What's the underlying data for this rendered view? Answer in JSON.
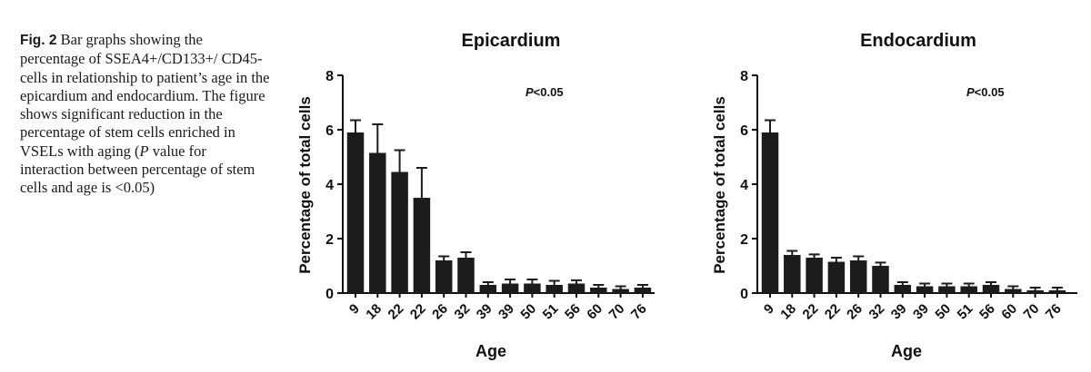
{
  "caption": {
    "fig_label": "Fig. 2",
    "text_part1": " Bar graphs showing the percentage of SSEA4+/CD133+/ CD45- cells in relationship to patient’s age in the epicardium and endocardium. The figure shows significant reduction in the percentage of stem cells enriched in VSELs with aging (",
    "text_italic": "P",
    "text_part2": " value for interaction between percentage of stem cells and age is <0.05)"
  },
  "chart_data": [
    {
      "type": "bar",
      "title": "Epicardium",
      "annotation": {
        "italic": "P",
        "rest": "<0.05"
      },
      "xlabel": "Age",
      "ylabel": "Percentage of total cells",
      "ylim": [
        0,
        8
      ],
      "yticks": [
        "0",
        "2",
        "4",
        "6",
        "8"
      ],
      "categories": [
        "9",
        "18",
        "22",
        "22",
        "26",
        "32",
        "39",
        "39",
        "50",
        "51",
        "56",
        "60",
        "70",
        "76"
      ],
      "values": [
        5.9,
        5.15,
        4.45,
        3.5,
        1.2,
        1.3,
        0.3,
        0.35,
        0.35,
        0.3,
        0.35,
        0.2,
        0.15,
        0.2
      ],
      "errors": [
        0.45,
        1.05,
        0.8,
        1.1,
        0.15,
        0.2,
        0.1,
        0.15,
        0.15,
        0.15,
        0.12,
        0.1,
        0.1,
        0.1
      ],
      "bar_color": "#1c1c1c"
    },
    {
      "type": "bar",
      "title": "Endocardium",
      "annotation": {
        "italic": "P",
        "rest": "<0.05"
      },
      "xlabel": "Age",
      "ylabel": "Percentage of total cells",
      "ylim": [
        0,
        8
      ],
      "yticks": [
        "0",
        "2",
        "4",
        "6",
        "8"
      ],
      "categories": [
        "9",
        "18",
        "22",
        "22",
        "26",
        "32",
        "39",
        "39",
        "50",
        "51",
        "56",
        "60",
        "70",
        "76"
      ],
      "values": [
        5.9,
        1.4,
        1.3,
        1.15,
        1.2,
        1.0,
        0.3,
        0.25,
        0.25,
        0.25,
        0.3,
        0.15,
        0.1,
        0.1
      ],
      "errors": [
        0.45,
        0.15,
        0.12,
        0.15,
        0.15,
        0.12,
        0.1,
        0.1,
        0.1,
        0.1,
        0.1,
        0.1,
        0.1,
        0.1
      ],
      "bar_color": "#1c1c1c"
    }
  ]
}
